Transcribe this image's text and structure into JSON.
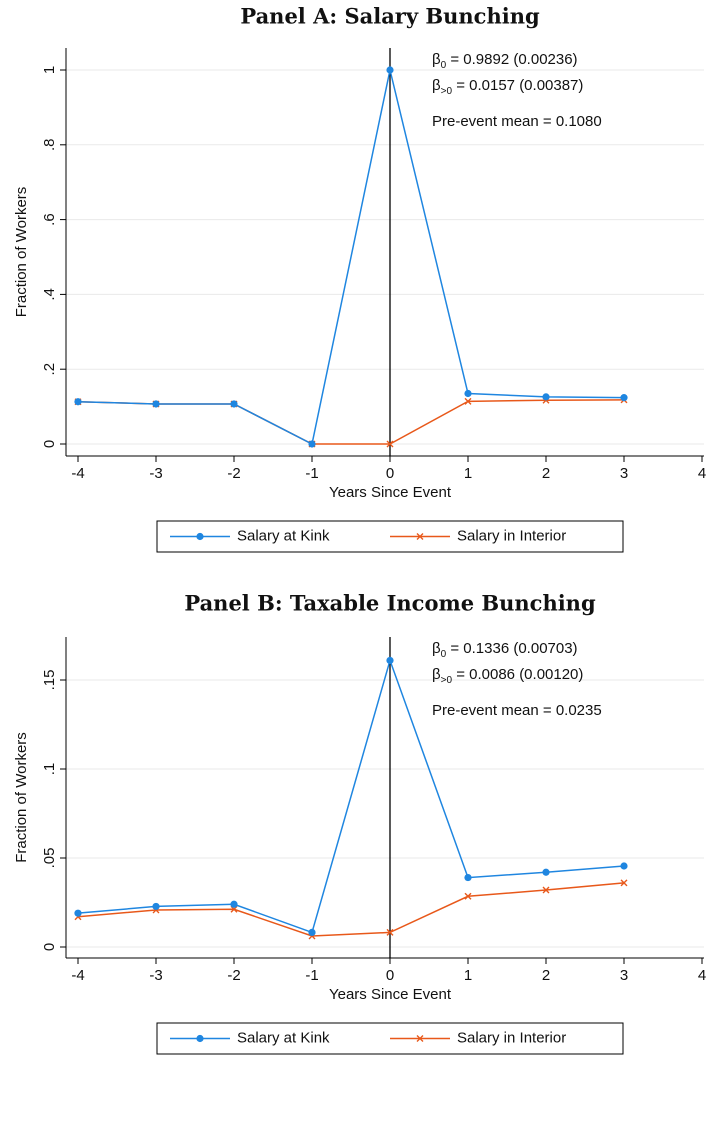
{
  "chart_data": [
    {
      "type": "line",
      "title": "Panel A: Salary Bunching",
      "x_label": "Years Since Event",
      "y_label": "Fraction of Workers",
      "x": [
        -4,
        -3,
        -2,
        -1,
        0,
        1,
        2,
        3
      ],
      "series": [
        {
          "name": "Salary at Kink",
          "color": "#1f86e0",
          "marker": "circle",
          "values": [
            0.113,
            0.107,
            0.107,
            0.0,
            1.0,
            0.135,
            0.126,
            0.124
          ]
        },
        {
          "name": "Salary in Interior",
          "color": "#e8581a",
          "marker": "x",
          "values": [
            0.113,
            0.107,
            0.107,
            0.0,
            0.0,
            0.114,
            0.117,
            0.118
          ]
        }
      ],
      "xlim": [
        -4,
        4
      ],
      "xticks": [
        -4,
        -3,
        -2,
        -1,
        0,
        1,
        2,
        3,
        4
      ],
      "ylim": [
        0,
        1
      ],
      "yticks": [
        0,
        {
          "value": 0.2,
          "label": ".2"
        },
        {
          "value": 0.4,
          "label": ".4"
        },
        {
          "value": 0.6,
          "label": ".6"
        },
        {
          "value": 0.8,
          "label": ".8"
        },
        1
      ],
      "grid": true,
      "vline": 0,
      "legend": "bottom",
      "annotations": [
        {
          "symbol": "β",
          "sub": "0",
          "text": " = 0.9892 (0.00236)"
        },
        {
          "symbol": "β",
          "sub": ">0",
          "text": " = 0.0157 (0.00387)"
        },
        {
          "text": "Pre-event mean = 0.1080"
        }
      ]
    },
    {
      "type": "line",
      "title": "Panel B: Taxable Income Bunching",
      "x_label": "Years Since Event",
      "y_label": "Fraction of Workers",
      "x": [
        -4,
        -3,
        -2,
        -1,
        0,
        1,
        2,
        3
      ],
      "series": [
        {
          "name": "Salary at Kink",
          "color": "#1f86e0",
          "marker": "circle",
          "values": [
            0.019,
            0.0228,
            0.024,
            0.0082,
            0.161,
            0.039,
            0.042,
            0.0455
          ]
        },
        {
          "name": "Salary in Interior",
          "color": "#e8581a",
          "marker": "x",
          "values": [
            0.017,
            0.0208,
            0.0212,
            0.0062,
            0.0082,
            0.0285,
            0.032,
            0.036
          ]
        }
      ],
      "xlim": [
        -4,
        4
      ],
      "xticks": [
        -4,
        -3,
        -2,
        -1,
        0,
        1,
        2,
        3,
        4
      ],
      "ylim": [
        0,
        0.15
      ],
      "yticks": [
        0,
        {
          "value": 0.05,
          "label": ".05"
        },
        {
          "value": 0.1,
          "label": ".1"
        },
        {
          "value": 0.15,
          "label": ".15"
        }
      ],
      "grid": true,
      "vline": 0,
      "legend": "bottom",
      "annotations": [
        {
          "symbol": "β",
          "sub": "0",
          "text": " = 0.1336 (0.00703)"
        },
        {
          "symbol": "β",
          "sub": ">0",
          "text": " = 0.0086 (0.00120)"
        },
        {
          "text": "Pre-event mean = 0.0235"
        }
      ]
    }
  ]
}
